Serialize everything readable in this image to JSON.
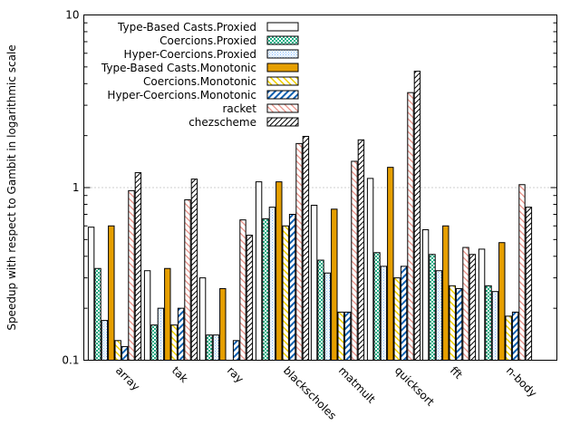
{
  "chart_data": {
    "type": "bar",
    "ylabel": "Speedup with respect to Gambit in logarithmic scale",
    "xlabel": "",
    "yscale": "log",
    "ylim": [
      0.1,
      10
    ],
    "y_ticks": [
      "0.1",
      "1",
      "10"
    ],
    "grid": "dotted horizontal line at 1",
    "legend_position": "top-left",
    "categories": [
      "array",
      "tak",
      "ray",
      "blackscholes",
      "matmult",
      "quicksort",
      "fft",
      "n-body"
    ],
    "series": [
      {
        "name": "Type-Based Casts.Proxied",
        "pattern": "white",
        "values": [
          0.59,
          0.33,
          0.3,
          1.08,
          0.79,
          1.13,
          0.57,
          0.44
        ]
      },
      {
        "name": "Coercions.Proxied",
        "pattern": "green-check",
        "values": [
          0.34,
          0.16,
          0.14,
          0.66,
          0.38,
          0.42,
          0.41,
          0.27
        ]
      },
      {
        "name": "Hyper-Coercions.Proxied",
        "pattern": "blue-dots",
        "values": [
          0.17,
          0.2,
          0.14,
          0.77,
          0.32,
          0.35,
          0.33,
          0.25
        ]
      },
      {
        "name": "Type-Based Casts.Monotonic",
        "pattern": "orange-solid",
        "values": [
          0.6,
          0.34,
          0.26,
          1.08,
          0.75,
          1.31,
          0.6,
          0.48
        ]
      },
      {
        "name": "Coercions.Monotonic",
        "pattern": "yellow-diag",
        "values": [
          0.13,
          0.16,
          0.1,
          0.6,
          0.19,
          0.3,
          0.27,
          0.18
        ]
      },
      {
        "name": "Hyper-Coercions.Monotonic",
        "pattern": "blue-diag",
        "values": [
          0.12,
          0.2,
          0.13,
          0.7,
          0.19,
          0.35,
          0.26,
          0.19
        ]
      },
      {
        "name": "racket",
        "pattern": "red-diag",
        "values": [
          0.96,
          0.85,
          0.65,
          1.8,
          1.42,
          3.55,
          0.45,
          1.04
        ]
      },
      {
        "name": "chezscheme",
        "pattern": "black-diag",
        "values": [
          1.22,
          1.12,
          0.53,
          1.98,
          1.89,
          4.72,
          0.41,
          0.77
        ]
      }
    ],
    "colors": {
      "green": "#1fae85",
      "blue_light": "#7fb9ff",
      "orange": "#e69f00",
      "yellow": "#f0d000",
      "blue_dark": "#1060b0",
      "red_light": "#e88a80",
      "black": "#000000",
      "grid": "#a0a0a0"
    }
  }
}
